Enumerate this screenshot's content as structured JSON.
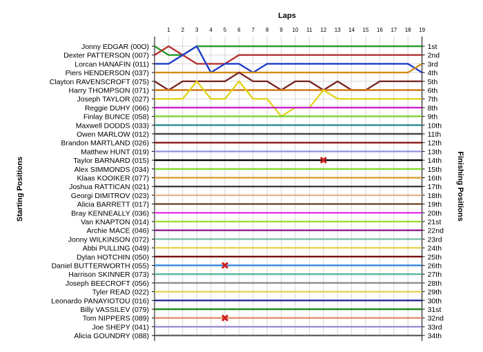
{
  "chart_data": {
    "type": "line",
    "title": "Laps",
    "ylabel_left": "Starting Positions",
    "ylabel_right": "Finishing Positions",
    "laps": [
      1,
      2,
      3,
      4,
      5,
      6,
      7,
      8,
      9,
      10,
      11,
      12,
      13,
      14,
      15,
      16,
      17,
      18,
      19
    ],
    "starting_labels": [
      "Jonny EDGAR (00O)",
      "Dexter PATTERSON (007)",
      "Lorcan HANAFIN (011)",
      "Piers HENDERSON (037)",
      "Clayton RAVENSCROFT (075)",
      "Harry THOMPSON (071)",
      "Joseph TAYLOR (027)",
      "Reggie DUHY (066)",
      "Finlay BUNCE (058)",
      "Maxwell DODDS (033)",
      "Owen MARLOW (012)",
      "Brandon MARTLAND (026)",
      "Matthew HUNT (019)",
      "Taylor BARNARD (015)",
      "Alex SIMMONDS (034)",
      "Klaas KOOIKER (077)",
      "Joshua RATTICAN (021)",
      "Georgi DIMITROV (023)",
      "Alicia BARRETT (017)",
      "Bray KENNEALLY (036)",
      "Van KNAPTON (014)",
      "Archie MACE (046)",
      "Jonny WILKINSON (072)",
      "Abbi PULLING (049)",
      "Dylan HOTCHIN (050)",
      "Daniel BUTTERWORTH (055)",
      "Harrison SKINNER (073)",
      "Joseph BEECROFT (056)",
      "Tyler READ (022)",
      "Leonardo PANAYIOTOU (016)",
      "Billy VASSILEV (079)",
      "Tom NIPPERS (089)",
      "Joe SHEPY (041)",
      "Alicia GOUNDRY (088)"
    ],
    "finishing_labels": [
      "1st",
      "2nd",
      "3rd",
      "4th",
      "5th",
      "6th",
      "7th",
      "8th",
      "9th",
      "10th",
      "11th",
      "12th",
      "13th",
      "14th",
      "15th",
      "16th",
      "17th",
      "18th",
      "19th",
      "20th",
      "21st",
      "22nd",
      "23rd",
      "24th",
      "25th",
      "26th",
      "27th",
      "28th",
      "29th",
      "30th",
      "31st",
      "32nd",
      "33rd",
      "34th"
    ],
    "series": [
      {
        "color": "#2a9a2a",
        "positions": [
          1,
          2,
          2,
          1,
          1,
          1,
          1,
          1,
          1,
          1,
          1,
          1,
          1,
          1,
          1,
          1,
          1,
          1,
          1,
          1
        ]
      },
      {
        "color": "#b43232",
        "positions": [
          2,
          1,
          2,
          3,
          3,
          3,
          2,
          2,
          2,
          2,
          2,
          2,
          2,
          2,
          2,
          2,
          2,
          2,
          2,
          2
        ]
      },
      {
        "color": "#1e3cc8",
        "positions": [
          3,
          3,
          2,
          1,
          4,
          3,
          3,
          4,
          3,
          3,
          3,
          3,
          3,
          3,
          3,
          3,
          3,
          3,
          3,
          4
        ]
      },
      {
        "color": "#d28c14",
        "positions": [
          4,
          4,
          4,
          4,
          4,
          4,
          4,
          4,
          4,
          4,
          4,
          4,
          4,
          4,
          4,
          4,
          4,
          4,
          4,
          3
        ]
      },
      {
        "color": "#7a2828",
        "positions": [
          5,
          6,
          5,
          5,
          5,
          5,
          4,
          5,
          5,
          6,
          5,
          5,
          6,
          5,
          6,
          6,
          5,
          5,
          5,
          5
        ]
      },
      {
        "color": "#d27814",
        "positions": [
          6,
          6,
          6,
          6,
          6,
          6,
          6,
          6,
          6,
          6,
          6,
          6,
          6,
          6,
          6,
          6,
          6,
          6,
          6,
          6
        ]
      },
      {
        "color": "#e1d21e",
        "positions": [
          7,
          7,
          7,
          5,
          7,
          7,
          5,
          7,
          7,
          9,
          8,
          8,
          6,
          7,
          7,
          7,
          7,
          7,
          7,
          7
        ]
      },
      {
        "color": "#c81ec8",
        "positions": [
          8,
          8,
          8,
          8,
          8,
          8,
          8,
          8,
          8,
          8,
          8,
          8,
          8,
          8,
          8,
          8,
          8,
          8,
          8,
          8
        ]
      },
      {
        "color": "#7ad232",
        "positions": [
          9,
          9,
          9,
          9,
          9,
          9,
          9,
          9,
          9,
          9,
          9,
          9,
          9,
          9,
          9,
          9,
          9,
          9,
          9,
          9
        ]
      },
      {
        "color": "#2a8c8c",
        "positions": [
          10,
          10,
          10,
          10,
          10,
          10,
          10,
          10,
          10,
          10,
          10,
          10,
          10,
          10,
          10,
          10,
          10,
          10,
          10,
          10
        ]
      },
      {
        "color": "#464646",
        "positions": [
          11,
          11,
          11,
          11,
          11,
          11,
          11,
          11,
          11,
          11,
          11,
          11,
          11,
          11,
          11,
          11,
          11,
          11,
          11,
          11
        ]
      },
      {
        "color": "#8c1414",
        "positions": [
          12,
          12,
          12,
          12,
          12,
          12,
          12,
          12,
          12,
          12,
          12,
          12,
          12,
          12,
          12,
          12,
          12,
          12,
          12,
          12
        ]
      },
      {
        "color": "#9696dc",
        "positions": [
          13,
          13,
          13,
          13,
          13,
          13,
          13,
          13,
          13,
          13,
          13,
          13,
          13,
          13,
          13,
          13,
          13,
          13,
          13,
          13
        ]
      },
      {
        "color": "#000000",
        "positions": [
          14,
          14,
          14,
          14,
          14,
          14,
          14,
          14,
          14,
          14,
          14,
          14,
          14,
          14,
          14,
          14,
          14,
          14,
          14,
          14
        ]
      },
      {
        "color": "#82dc28",
        "positions": [
          15,
          15,
          15,
          15,
          15,
          15,
          15,
          15,
          15,
          15,
          15,
          15,
          15,
          15,
          15,
          15,
          15,
          15,
          15,
          15
        ]
      },
      {
        "color": "#dca03c",
        "positions": [
          16,
          16,
          16,
          16,
          16,
          16,
          16,
          16,
          16,
          16,
          16,
          16,
          16,
          16,
          16,
          16,
          16,
          16,
          16,
          16
        ]
      },
      {
        "color": "#3c3c3c",
        "positions": [
          17,
          17,
          17,
          17,
          17,
          17,
          17,
          17,
          17,
          17,
          17,
          17,
          17,
          17,
          17,
          17,
          17,
          17,
          17,
          17
        ]
      },
      {
        "color": "#e6b48c",
        "positions": [
          18,
          18,
          18,
          18,
          18,
          18,
          18,
          18,
          18,
          18,
          18,
          18,
          18,
          18,
          18,
          18,
          18,
          18,
          18,
          18
        ]
      },
      {
        "color": "#6e4628",
        "positions": [
          19,
          19,
          19,
          19,
          19,
          19,
          19,
          19,
          19,
          19,
          19,
          19,
          19,
          19,
          19,
          19,
          19,
          19,
          19,
          19
        ]
      },
      {
        "color": "#e632e6",
        "positions": [
          20,
          20,
          20,
          20,
          20,
          20,
          20,
          20,
          20,
          20,
          20,
          20,
          20,
          20,
          20,
          20,
          20,
          20,
          20,
          20
        ]
      },
      {
        "color": "#a0dc3c",
        "positions": [
          21,
          21,
          21,
          21,
          21,
          21,
          21,
          21,
          21,
          21,
          21,
          21,
          21,
          21,
          21,
          21,
          21,
          21,
          21,
          21
        ]
      },
      {
        "color": "#8c1e8c",
        "positions": [
          22,
          22,
          22,
          22,
          22,
          22,
          22,
          22,
          22,
          22,
          22,
          22,
          22,
          22,
          22,
          22,
          22,
          22,
          22,
          22
        ]
      },
      {
        "color": "#78beaa",
        "positions": [
          23,
          23,
          23,
          23,
          23,
          23,
          23,
          23,
          23,
          23,
          23,
          23,
          23,
          23,
          23,
          23,
          23,
          23,
          23,
          23
        ]
      },
      {
        "color": "#e6d250",
        "positions": [
          24,
          24,
          24,
          24,
          24,
          24,
          24,
          24,
          24,
          24,
          24,
          24,
          24,
          24,
          24,
          24,
          24,
          24,
          24,
          24
        ]
      },
      {
        "color": "#780a0a",
        "positions": [
          25,
          25,
          25,
          25,
          25,
          25,
          25,
          25,
          25,
          25,
          25,
          25,
          25,
          25,
          25,
          25,
          25,
          25,
          25,
          25
        ]
      },
      {
        "color": "#3c8cdc",
        "positions": [
          26,
          26,
          26,
          26,
          26,
          26,
          26,
          26,
          26,
          26,
          26,
          26,
          26,
          26,
          26,
          26,
          26,
          26,
          26,
          26
        ]
      },
      {
        "color": "#5ab4a0",
        "positions": [
          27,
          27,
          27,
          27,
          27,
          27,
          27,
          27,
          27,
          27,
          27,
          27,
          27,
          27,
          27,
          27,
          27,
          27,
          27,
          27
        ]
      },
      {
        "color": "#8c8c8c",
        "positions": [
          28,
          28,
          28,
          28,
          28,
          28,
          28,
          28,
          28,
          28,
          28,
          28,
          28,
          28,
          28,
          28,
          28,
          28,
          28,
          28
        ]
      },
      {
        "color": "#e6d250",
        "positions": [
          29,
          29,
          29,
          29,
          29,
          29,
          29,
          29,
          29,
          29,
          29,
          29,
          29,
          29,
          29,
          29,
          29,
          29,
          29,
          29
        ]
      },
      {
        "color": "#282896",
        "positions": [
          30,
          30,
          30,
          30,
          30,
          30,
          30,
          30,
          30,
          30,
          30,
          30,
          30,
          30,
          30,
          30,
          30,
          30,
          30,
          30
        ]
      },
      {
        "color": "#1e8c1e",
        "positions": [
          31,
          31,
          31,
          31,
          31,
          31,
          31,
          31,
          31,
          31,
          31,
          31,
          31,
          31,
          31,
          31,
          31,
          31,
          31,
          31
        ]
      },
      {
        "color": "#e68c6e",
        "positions": [
          32,
          32,
          32,
          32,
          32,
          32,
          32,
          32,
          32,
          32,
          32,
          32,
          32,
          32,
          32,
          32,
          32,
          32,
          32,
          32
        ]
      },
      {
        "color": "#9b8cd2",
        "positions": [
          33,
          33,
          33,
          33,
          33,
          33,
          33,
          33,
          33,
          33,
          33,
          33,
          33,
          33,
          33,
          33,
          33,
          33,
          33,
          33
        ]
      },
      {
        "color": "#646464",
        "positions": [
          34,
          34,
          34,
          34,
          34,
          34,
          34,
          34,
          34,
          34,
          34,
          34,
          34,
          34,
          34,
          34,
          34,
          34,
          34,
          34
        ]
      }
    ],
    "retirements": [
      {
        "lap": 5,
        "position": 26
      },
      {
        "lap": 5,
        "position": 32
      },
      {
        "lap": 12,
        "position": 14
      }
    ],
    "grid": true
  }
}
